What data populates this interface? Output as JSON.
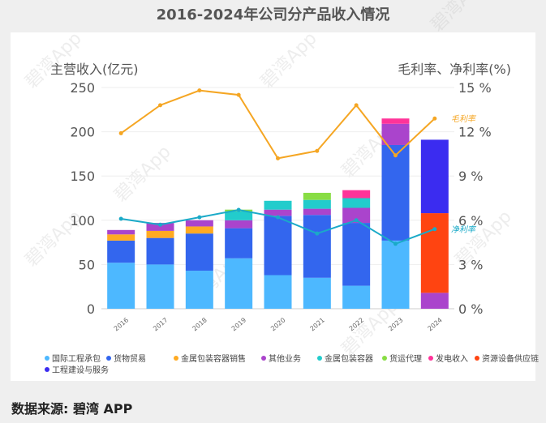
{
  "title": "2016-2024年公司分产品收入情况",
  "source": "数据来源: 碧湾 APP",
  "watermark": "碧湾App",
  "chart_data": {
    "type": "bar",
    "stacked": true,
    "categories": [
      "2016",
      "2017",
      "2018",
      "2019",
      "2020",
      "2021",
      "2022",
      "2023",
      "2024"
    ],
    "y_left": {
      "label": "主营收入(亿元)",
      "lim": [
        0,
        250
      ],
      "ticks": [
        "0",
        "50",
        "100",
        "150",
        "200",
        "250"
      ]
    },
    "y_right": {
      "label": "毛利率、净利率(%)",
      "lim": [
        0,
        15
      ],
      "ticks": [
        "0 %",
        "3 %",
        "6 %",
        "9 %",
        "12 %",
        "15 %"
      ]
    },
    "series": [
      {
        "name": "国际工程承包",
        "color": "#4db8ff",
        "values": [
          52,
          50,
          43,
          57,
          38,
          35,
          26,
          77,
          0
        ]
      },
      {
        "name": "货物贸易",
        "color": "#3366ee",
        "values": [
          25,
          30,
          42,
          34,
          67,
          71,
          71,
          108,
          0
        ]
      },
      {
        "name": "金属包装容器销售",
        "color": "#ffaa22",
        "values": [
          7,
          8,
          8,
          0,
          0,
          0,
          0,
          0,
          0
        ]
      },
      {
        "name": "其他业务",
        "color": "#aa44cc",
        "values": [
          5,
          9,
          7,
          9,
          7,
          7,
          17,
          24,
          18
        ]
      },
      {
        "name": "金属包装容器",
        "color": "#22cccc",
        "values": [
          0,
          0,
          0,
          10,
          10,
          10,
          11,
          0,
          0
        ]
      },
      {
        "name": "货运代理",
        "color": "#88dd44",
        "values": [
          0,
          0,
          0,
          2,
          0,
          8,
          0,
          0,
          0
        ]
      },
      {
        "name": "发电收入",
        "color": "#ff3399",
        "values": [
          0,
          0,
          0,
          0,
          0,
          0,
          9,
          6,
          0
        ]
      },
      {
        "name": "资源设备供应链",
        "color": "#ff4411",
        "values": [
          0,
          0,
          0,
          0,
          0,
          0,
          0,
          0,
          90
        ]
      },
      {
        "name": "工程建设与服务",
        "color": "#3b2cf0",
        "values": [
          0,
          0,
          0,
          0,
          0,
          0,
          0,
          0,
          83
        ]
      }
    ],
    "lines": [
      {
        "name": "毛利率",
        "label": "毛利率",
        "color": "#f5a623",
        "axis": "right",
        "values": [
          11.9,
          13.8,
          14.8,
          14.5,
          10.2,
          10.7,
          13.8,
          10.4,
          12.9
        ]
      },
      {
        "name": "净利率",
        "label": "净利率",
        "color": "#1aaac8",
        "axis": "right",
        "values": [
          6.1,
          5.7,
          6.2,
          6.7,
          6.2,
          5.1,
          6.0,
          4.4,
          5.4
        ]
      }
    ]
  }
}
